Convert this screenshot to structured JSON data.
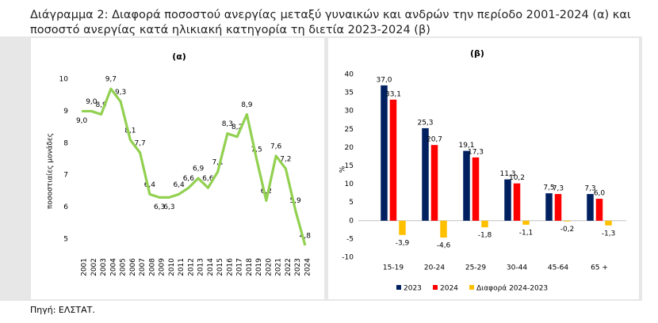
{
  "header": {
    "title_lines": [
      "Διάγραμμα 2: Διαφορά ποσοστού ανεργίας μεταξύ γυναικών και ανδρών την περίοδο 2001-2024 (α) και",
      "ποσοστό ανεργίας κατά ηλικιακή κατηγορία τη διετία 2023-2024 (β)"
    ]
  },
  "chart_data": [
    {
      "type": "line",
      "title": "(α)",
      "y_label": "ποσοστιαίες μονάδες",
      "categories": [
        "2001",
        "2002",
        "2003",
        "2004",
        "2005",
        "2006",
        "2007",
        "2008",
        "2009",
        "2010",
        "2011",
        "2012",
        "2013",
        "2014",
        "2015",
        "2016",
        "2017",
        "2018",
        "2019",
        "2020",
        "2021",
        "2022",
        "2023",
        "2024"
      ],
      "values": [
        9.0,
        9.0,
        8.9,
        9.7,
        9.3,
        8.1,
        7.7,
        6.4,
        6.3,
        6.3,
        6.4,
        6.6,
        6.9,
        6.6,
        7.1,
        8.3,
        8.2,
        8.9,
        7.5,
        6.2,
        7.6,
        7.2,
        5.9,
        4.8
      ],
      "value_labels": [
        "9,0",
        "9,0",
        "8,9",
        "9,7",
        "9,3",
        "8,1",
        "7,7",
        "6,4",
        "6,3",
        "6,3",
        "6,4",
        "6,6",
        "6,9",
        "6,6",
        "7,1",
        "8,3",
        "8,2",
        "8,9",
        "7,5",
        "6,2",
        "7,6",
        "7,2",
        "5,9",
        "4,8"
      ],
      "color": "#92d050",
      "ylim": [
        4.5,
        10.3
      ],
      "yticks": [
        5,
        6,
        7,
        8,
        9,
        10
      ]
    },
    {
      "type": "bar",
      "title": "(β)",
      "y_label": "%",
      "categories": [
        "15-19",
        "20-24",
        "25-29",
        "30-44",
        "45-64",
        "65 +"
      ],
      "series": [
        {
          "name": "2023",
          "color": "#002060",
          "values": [
            37.0,
            25.3,
            19.1,
            11.3,
            7.5,
            7.3
          ],
          "value_labels": [
            "37,0",
            "25,3",
            "19,1",
            "11,3",
            "7,5",
            "7,3"
          ]
        },
        {
          "name": "2024",
          "color": "#ff0000",
          "values": [
            33.1,
            20.7,
            17.3,
            10.2,
            7.3,
            6.0
          ],
          "value_labels": [
            "33,1",
            "20,7",
            "17,3",
            "10,2",
            "7,3",
            "6,0"
          ]
        },
        {
          "name": "Διαφορά 2024-2023",
          "color": "#ffc000",
          "values": [
            -3.9,
            -4.6,
            -1.8,
            -1.1,
            -0.2,
            -1.3
          ],
          "value_labels": [
            "-3,9",
            "-4,6",
            "-1,8",
            "-1,1",
            "-0,2",
            "-1,3"
          ]
        }
      ],
      "ylim": [
        -10,
        40
      ],
      "yticks": [
        -10,
        -5,
        0,
        5,
        10,
        15,
        20,
        25,
        30,
        35,
        40
      ],
      "legend": "bottom"
    }
  ],
  "source": "Πηγή: ΕΛΣΤΑΤ."
}
